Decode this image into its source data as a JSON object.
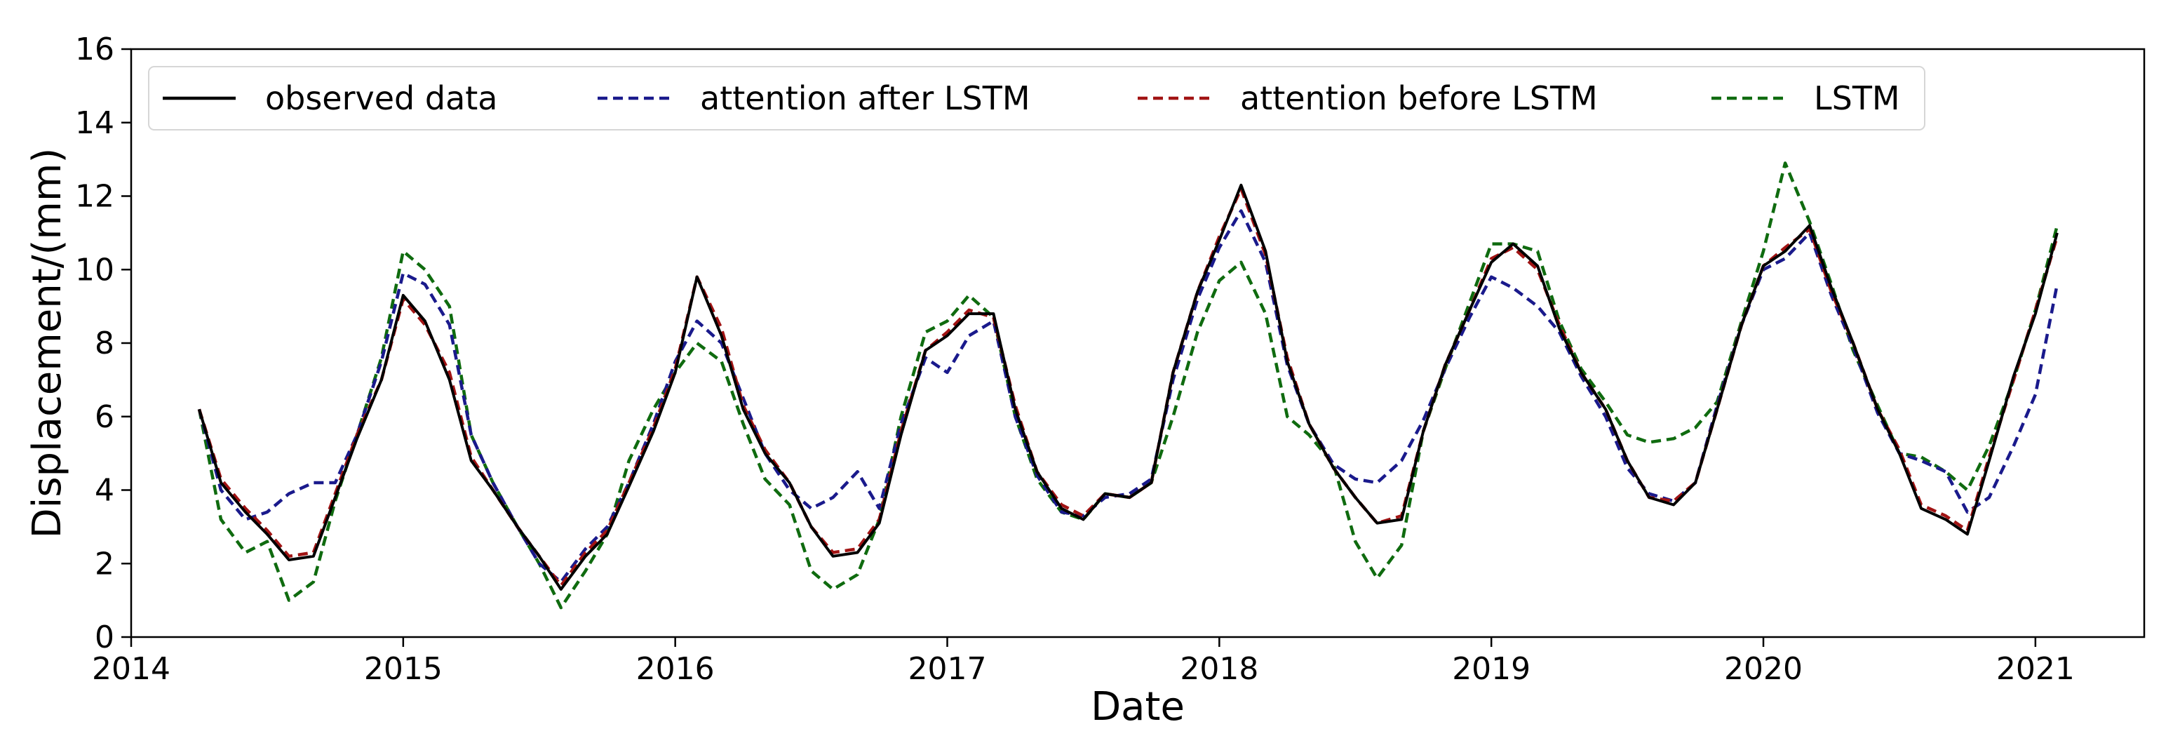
{
  "chart_data": {
    "type": "line",
    "title": "",
    "xlabel": "Date",
    "ylabel": "Displacement/(mm)",
    "xlim": [
      2014,
      2021.4
    ],
    "ylim": [
      0,
      16
    ],
    "xticks": [
      2014,
      2015,
      2016,
      2017,
      2018,
      2019,
      2020,
      2021
    ],
    "xtick_labels": [
      "2014",
      "2015",
      "2016",
      "2017",
      "2018",
      "2019",
      "2020",
      "2021"
    ],
    "yticks": [
      0,
      2,
      4,
      6,
      8,
      10,
      12,
      14,
      16
    ],
    "ytick_labels": [
      "0",
      "2",
      "4",
      "6",
      "8",
      "10",
      "12",
      "14",
      "16"
    ],
    "grid": false,
    "legend_position": "top-left",
    "x": [
      2014.25,
      2014.33,
      2014.42,
      2014.5,
      2014.58,
      2014.67,
      2014.75,
      2014.83,
      2014.92,
      2015.0,
      2015.08,
      2015.17,
      2015.25,
      2015.33,
      2015.42,
      2015.5,
      2015.58,
      2015.67,
      2015.75,
      2015.83,
      2015.92,
      2016.0,
      2016.08,
      2016.17,
      2016.25,
      2016.33,
      2016.42,
      2016.5,
      2016.58,
      2016.67,
      2016.75,
      2016.83,
      2016.92,
      2017.0,
      2017.08,
      2017.17,
      2017.25,
      2017.33,
      2017.42,
      2017.5,
      2017.58,
      2017.67,
      2017.75,
      2017.83,
      2017.92,
      2018.0,
      2018.08,
      2018.17,
      2018.25,
      2018.33,
      2018.42,
      2018.5,
      2018.58,
      2018.67,
      2018.75,
      2018.83,
      2018.92,
      2019.0,
      2019.08,
      2019.17,
      2019.25,
      2019.33,
      2019.42,
      2019.5,
      2019.58,
      2019.67,
      2019.75,
      2019.83,
      2019.92,
      2020.0,
      2020.08,
      2020.17,
      2020.25,
      2020.33,
      2020.42,
      2020.5,
      2020.58,
      2020.67,
      2020.75,
      2020.83,
      2020.92,
      2021.0,
      2021.08
    ],
    "series": [
      {
        "name": "observed data",
        "color": "#000000",
        "dash": "solid",
        "values": [
          6.2,
          4.2,
          3.4,
          2.8,
          2.1,
          2.2,
          3.8,
          5.4,
          7.0,
          9.3,
          8.6,
          7.0,
          4.8,
          4.0,
          3.0,
          2.2,
          1.3,
          2.2,
          2.8,
          4.1,
          5.6,
          7.2,
          9.8,
          8.2,
          6.2,
          5.0,
          4.2,
          3.0,
          2.2,
          2.3,
          3.1,
          5.5,
          7.8,
          8.2,
          8.8,
          8.8,
          6.2,
          4.5,
          3.5,
          3.2,
          3.9,
          3.8,
          4.2,
          7.2,
          9.4,
          10.8,
          12.3,
          10.5,
          7.5,
          5.8,
          4.6,
          3.8,
          3.1,
          3.2,
          5.6,
          7.4,
          8.9,
          10.2,
          10.7,
          10.1,
          8.4,
          7.2,
          6.2,
          4.8,
          3.8,
          3.6,
          4.2,
          6.2,
          8.5,
          10.1,
          10.5,
          11.2,
          9.5,
          8.0,
          6.2,
          5.0,
          3.5,
          3.2,
          2.8,
          4.8,
          7.1,
          8.8,
          11.0
        ]
      },
      {
        "name": "attention after LSTM",
        "color": "#1a1a8c",
        "dash": "dashed",
        "values": [
          6.2,
          4.0,
          3.2,
          3.4,
          3.9,
          4.2,
          4.2,
          5.5,
          7.5,
          9.9,
          9.6,
          8.5,
          5.5,
          4.2,
          3.0,
          2.0,
          1.5,
          2.4,
          3.0,
          4.2,
          5.8,
          7.5,
          8.6,
          8.0,
          6.5,
          5.0,
          4.0,
          3.5,
          3.8,
          4.5,
          3.5,
          5.8,
          7.6,
          7.2,
          8.2,
          8.6,
          6.0,
          4.4,
          3.4,
          3.3,
          3.8,
          3.9,
          4.3,
          7.0,
          9.2,
          10.6,
          11.6,
          10.2,
          7.4,
          5.8,
          4.7,
          4.3,
          4.2,
          4.8,
          5.9,
          7.3,
          8.7,
          9.8,
          9.5,
          9.0,
          8.3,
          7.1,
          6.0,
          4.6,
          3.9,
          3.7,
          4.2,
          6.3,
          8.5,
          10.0,
          10.3,
          11.0,
          9.3,
          7.9,
          6.1,
          5.0,
          4.8,
          4.5,
          3.4,
          3.8,
          5.2,
          6.6,
          9.6
        ]
      },
      {
        "name": "attention before LSTM",
        "color": "#a11414",
        "dash": "dashed",
        "values": [
          6.2,
          4.3,
          3.5,
          2.9,
          2.2,
          2.3,
          3.9,
          5.5,
          7.0,
          9.2,
          8.5,
          7.2,
          4.9,
          4.0,
          3.0,
          2.2,
          1.4,
          2.3,
          2.9,
          4.2,
          5.7,
          7.3,
          9.8,
          8.4,
          6.3,
          5.1,
          4.2,
          3.0,
          2.3,
          2.4,
          3.2,
          5.6,
          7.8,
          8.3,
          8.9,
          8.7,
          6.3,
          4.5,
          3.6,
          3.3,
          3.9,
          3.8,
          4.2,
          7.2,
          9.4,
          10.9,
          12.2,
          10.4,
          7.6,
          5.8,
          4.6,
          3.8,
          3.1,
          3.3,
          5.6,
          7.4,
          8.9,
          10.3,
          10.6,
          10.0,
          8.5,
          7.2,
          6.2,
          4.8,
          3.8,
          3.7,
          4.2,
          6.2,
          8.5,
          10.1,
          10.6,
          11.1,
          9.4,
          8.0,
          6.2,
          5.1,
          3.6,
          3.3,
          2.9,
          4.9,
          7.0,
          8.9,
          10.9
        ]
      },
      {
        "name": "LSTM",
        "color": "#0f6b0f",
        "dash": "dashed",
        "values": [
          6.2,
          3.2,
          2.3,
          2.6,
          1.0,
          1.5,
          3.7,
          5.5,
          7.6,
          10.5,
          10.0,
          9.0,
          5.5,
          4.2,
          3.0,
          2.0,
          0.8,
          1.8,
          2.8,
          4.8,
          6.2,
          7.2,
          8.0,
          7.5,
          5.8,
          4.3,
          3.6,
          1.8,
          1.3,
          1.7,
          3.2,
          6.0,
          8.3,
          8.6,
          9.3,
          8.7,
          6.0,
          4.3,
          3.4,
          3.2,
          3.9,
          3.8,
          4.2,
          6.0,
          8.3,
          9.7,
          10.2,
          8.8,
          6.0,
          5.5,
          4.7,
          2.6,
          1.6,
          2.5,
          5.6,
          7.3,
          9.1,
          10.7,
          10.7,
          10.5,
          8.6,
          7.3,
          6.4,
          5.5,
          5.3,
          5.4,
          5.7,
          6.4,
          8.6,
          10.5,
          12.9,
          11.3,
          9.6,
          7.8,
          6.3,
          5.0,
          4.9,
          4.5,
          4.0,
          5.2,
          7.0,
          8.9,
          11.2
        ]
      }
    ]
  }
}
